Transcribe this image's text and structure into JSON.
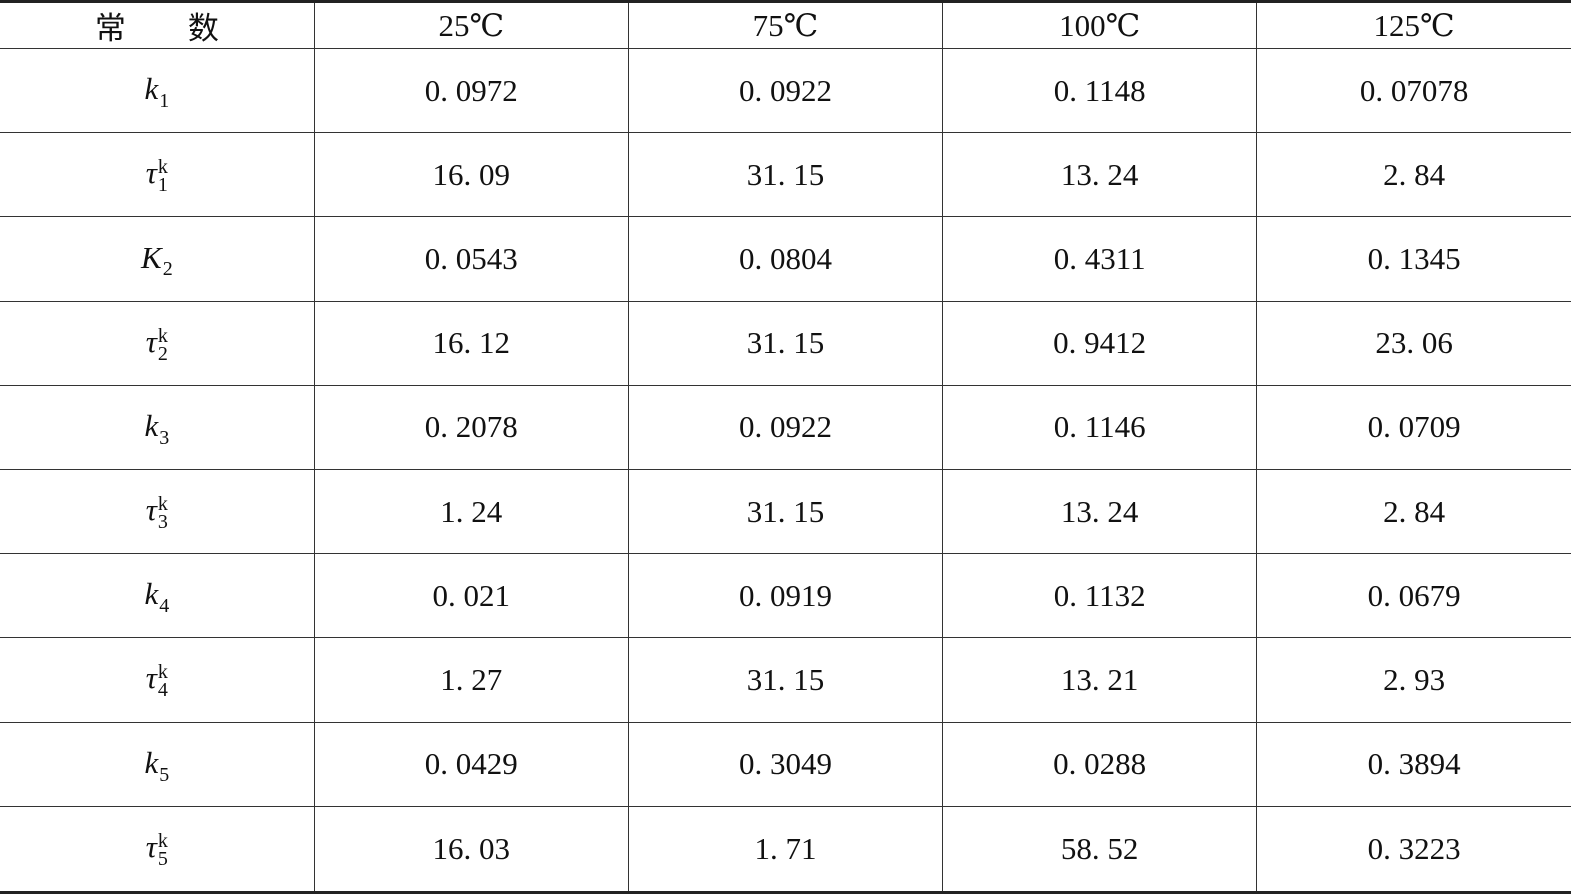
{
  "table": {
    "header": [
      "常　　数",
      "25℃",
      "75℃",
      "100℃",
      "125℃"
    ],
    "rows": [
      {
        "label": {
          "base": "k",
          "sub": "1"
        },
        "values": [
          "0. 0972",
          "0. 0922",
          "0. 1148",
          "0. 07078"
        ]
      },
      {
        "label": {
          "base": "τ",
          "sup": "k",
          "sub": "1"
        },
        "values": [
          "16. 09",
          "31. 15",
          "13. 24",
          "2. 84"
        ]
      },
      {
        "label": {
          "base": "K",
          "sub": "2"
        },
        "values": [
          "0. 0543",
          "0. 0804",
          "0. 4311",
          "0. 1345"
        ]
      },
      {
        "label": {
          "base": "τ",
          "sup": "k",
          "sub": "2"
        },
        "values": [
          "16. 12",
          "31. 15",
          "0. 9412",
          "23. 06"
        ]
      },
      {
        "label": {
          "base": "k",
          "sub": "3"
        },
        "values": [
          "0. 2078",
          "0. 0922",
          "0. 1146",
          "0. 0709"
        ]
      },
      {
        "label": {
          "base": "τ",
          "sup": "k",
          "sub": "3"
        },
        "values": [
          "1. 24",
          "31. 15",
          "13. 24",
          "2. 84"
        ]
      },
      {
        "label": {
          "base": "k",
          "sub": "4"
        },
        "values": [
          "0. 021",
          "0. 0919",
          "0. 1132",
          "0. 0679"
        ]
      },
      {
        "label": {
          "base": "τ",
          "sup": "k",
          "sub": "4"
        },
        "values": [
          "1. 27",
          "31. 15",
          "13. 21",
          "2. 93"
        ]
      },
      {
        "label": {
          "base": "k",
          "sub": "5"
        },
        "values": [
          "0. 0429",
          "0. 3049",
          "0. 0288",
          "0. 3894"
        ]
      },
      {
        "label": {
          "base": "τ",
          "sup": "k",
          "sub": "5"
        },
        "values": [
          "16. 03",
          "1. 71",
          "58. 52",
          "0. 3223"
        ]
      }
    ]
  }
}
